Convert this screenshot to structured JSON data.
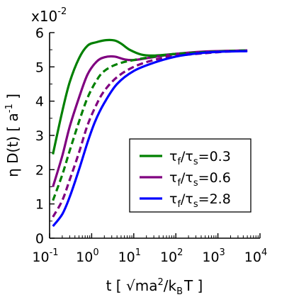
{
  "chart_data": {
    "type": "line",
    "xlabel": {
      "base": "t [ √ma",
      "sup1": "2",
      "mid": "/k",
      "sub1": "B",
      "end": "T ]"
    },
    "ylabel": {
      "base": "η D(t) [ a",
      "sup1": "-1",
      "end": " ]"
    },
    "y_multiplier": {
      "base": "x10",
      "exp": "-2"
    },
    "x_scale": "log",
    "xlim": [
      0.1,
      10000
    ],
    "ylim": [
      0,
      6
    ],
    "x_ticks": [
      {
        "value": 0.1,
        "base": "10",
        "exp": "-1"
      },
      {
        "value": 1,
        "base": "10",
        "exp": "0"
      },
      {
        "value": 10,
        "base": "10",
        "exp": "1"
      },
      {
        "value": 100,
        "base": "10",
        "exp": "2"
      },
      {
        "value": 1000,
        "base": "10",
        "exp": "3"
      },
      {
        "value": 10000,
        "base": "10",
        "exp": "4"
      }
    ],
    "y_ticks": [
      {
        "value": 0,
        "label": "0"
      },
      {
        "value": 1,
        "label": "1"
      },
      {
        "value": 2,
        "label": "2"
      },
      {
        "value": 3,
        "label": "3"
      },
      {
        "value": 4,
        "label": "4"
      },
      {
        "value": 5,
        "label": "5"
      },
      {
        "value": 6,
        "label": "6"
      }
    ],
    "grid": false,
    "legend_position": "lower-right",
    "series": [
      {
        "legend": {
          "t1": "τ",
          "s1": "f",
          "slash": "/τ",
          "s2": "s",
          "val": "=0.3"
        },
        "color": "#008000",
        "style": "solid",
        "points": [
          [
            0.12,
            2.45
          ],
          [
            0.2,
            3.7
          ],
          [
            0.3,
            4.55
          ],
          [
            0.5,
            5.25
          ],
          [
            0.8,
            5.62
          ],
          [
            1.3,
            5.72
          ],
          [
            2.2,
            5.78
          ],
          [
            3.5,
            5.77
          ],
          [
            5,
            5.68
          ],
          [
            8,
            5.5
          ],
          [
            15,
            5.36
          ],
          [
            30,
            5.33
          ],
          [
            100,
            5.38
          ],
          [
            500,
            5.44
          ],
          [
            5000,
            5.48
          ]
        ]
      },
      {
        "legend": {
          "t1": "τ",
          "s1": "f",
          "slash": "/τ",
          "s2": "s",
          "val": "=0.6"
        },
        "color": "#800080",
        "style": "solid",
        "points": [
          [
            0.12,
            1.5
          ],
          [
            0.2,
            2.4
          ],
          [
            0.3,
            3.25
          ],
          [
            0.5,
            4.1
          ],
          [
            0.8,
            4.78
          ],
          [
            1.3,
            5.15
          ],
          [
            2,
            5.28
          ],
          [
            3.5,
            5.3
          ],
          [
            6,
            5.22
          ],
          [
            10,
            5.2
          ],
          [
            25,
            5.27
          ],
          [
            100,
            5.38
          ],
          [
            500,
            5.45
          ],
          [
            5000,
            5.48
          ]
        ]
      },
      {
        "legend": null,
        "color": "#008000",
        "style": "dashed",
        "points": [
          [
            0.12,
            1.1
          ],
          [
            0.2,
            1.85
          ],
          [
            0.3,
            2.55
          ],
          [
            0.5,
            3.4
          ],
          [
            0.8,
            4.1
          ],
          [
            1.3,
            4.6
          ],
          [
            2,
            4.88
          ],
          [
            4,
            5.08
          ],
          [
            10,
            5.2
          ],
          [
            30,
            5.3
          ],
          [
            100,
            5.38
          ],
          [
            1000,
            5.45
          ],
          [
            5000,
            5.48
          ]
        ]
      },
      {
        "legend": null,
        "color": "#800080",
        "style": "dashed",
        "points": [
          [
            0.12,
            0.62
          ],
          [
            0.2,
            1.1
          ],
          [
            0.3,
            1.7
          ],
          [
            0.5,
            2.5
          ],
          [
            0.8,
            3.3
          ],
          [
            1.3,
            3.9
          ],
          [
            2,
            4.3
          ],
          [
            4,
            4.7
          ],
          [
            10,
            5.0
          ],
          [
            30,
            5.2
          ],
          [
            100,
            5.32
          ],
          [
            1000,
            5.43
          ],
          [
            5000,
            5.47
          ]
        ]
      },
      {
        "legend": {
          "t1": "τ",
          "s1": "f",
          "slash": "/τ",
          "s2": "s",
          "val": "=2.8"
        },
        "color": "#0000ff",
        "style": "solid",
        "points": [
          [
            0.12,
            0.35
          ],
          [
            0.2,
            0.7
          ],
          [
            0.3,
            1.2
          ],
          [
            0.5,
            2.0
          ],
          [
            0.8,
            2.8
          ],
          [
            1.2,
            3.4
          ],
          [
            2,
            3.95
          ],
          [
            4,
            4.5
          ],
          [
            10,
            4.88
          ],
          [
            30,
            5.12
          ],
          [
            100,
            5.3
          ],
          [
            300,
            5.39
          ],
          [
            1000,
            5.44
          ],
          [
            5000,
            5.46
          ]
        ]
      }
    ]
  }
}
